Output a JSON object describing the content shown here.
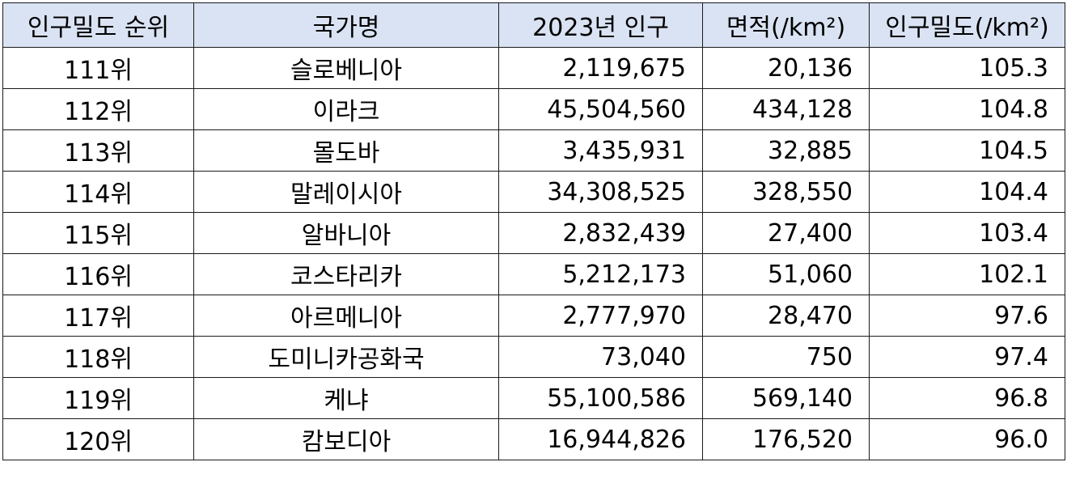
{
  "table": {
    "headers": {
      "rank": "인구밀도 순위",
      "country": "국가명",
      "population": "2023년 인구",
      "area": "면적(/km²)",
      "density": "인구밀도(/km²)"
    },
    "rows": [
      {
        "rank": "111위",
        "country": "슬로베니아",
        "population": "2,119,675",
        "area": "20,136",
        "density": "105.3"
      },
      {
        "rank": "112위",
        "country": "이라크",
        "population": "45,504,560",
        "area": "434,128",
        "density": "104.8"
      },
      {
        "rank": "113위",
        "country": "몰도바",
        "population": "3,435,931",
        "area": "32,885",
        "density": "104.5"
      },
      {
        "rank": "114위",
        "country": "말레이시아",
        "population": "34,308,525",
        "area": "328,550",
        "density": "104.4"
      },
      {
        "rank": "115위",
        "country": "알바니아",
        "population": "2,832,439",
        "area": "27,400",
        "density": "103.4"
      },
      {
        "rank": "116위",
        "country": "코스타리카",
        "population": "5,212,173",
        "area": "51,060",
        "density": "102.1"
      },
      {
        "rank": "117위",
        "country": "아르메니아",
        "population": "2,777,970",
        "area": "28,470",
        "density": "97.6"
      },
      {
        "rank": "118위",
        "country": "도미니카공화국",
        "population": "73,040",
        "area": "750",
        "density": "97.4"
      },
      {
        "rank": "119위",
        "country": "케냐",
        "population": "55,100,586",
        "area": "569,140",
        "density": "96.8"
      },
      {
        "rank": "120위",
        "country": "캄보디아",
        "population": "16,944,826",
        "area": "176,520",
        "density": "96.0"
      }
    ]
  },
  "colors": {
    "header_background": "#dae3f3",
    "border": "#1a1a1a",
    "text": "#000000"
  }
}
